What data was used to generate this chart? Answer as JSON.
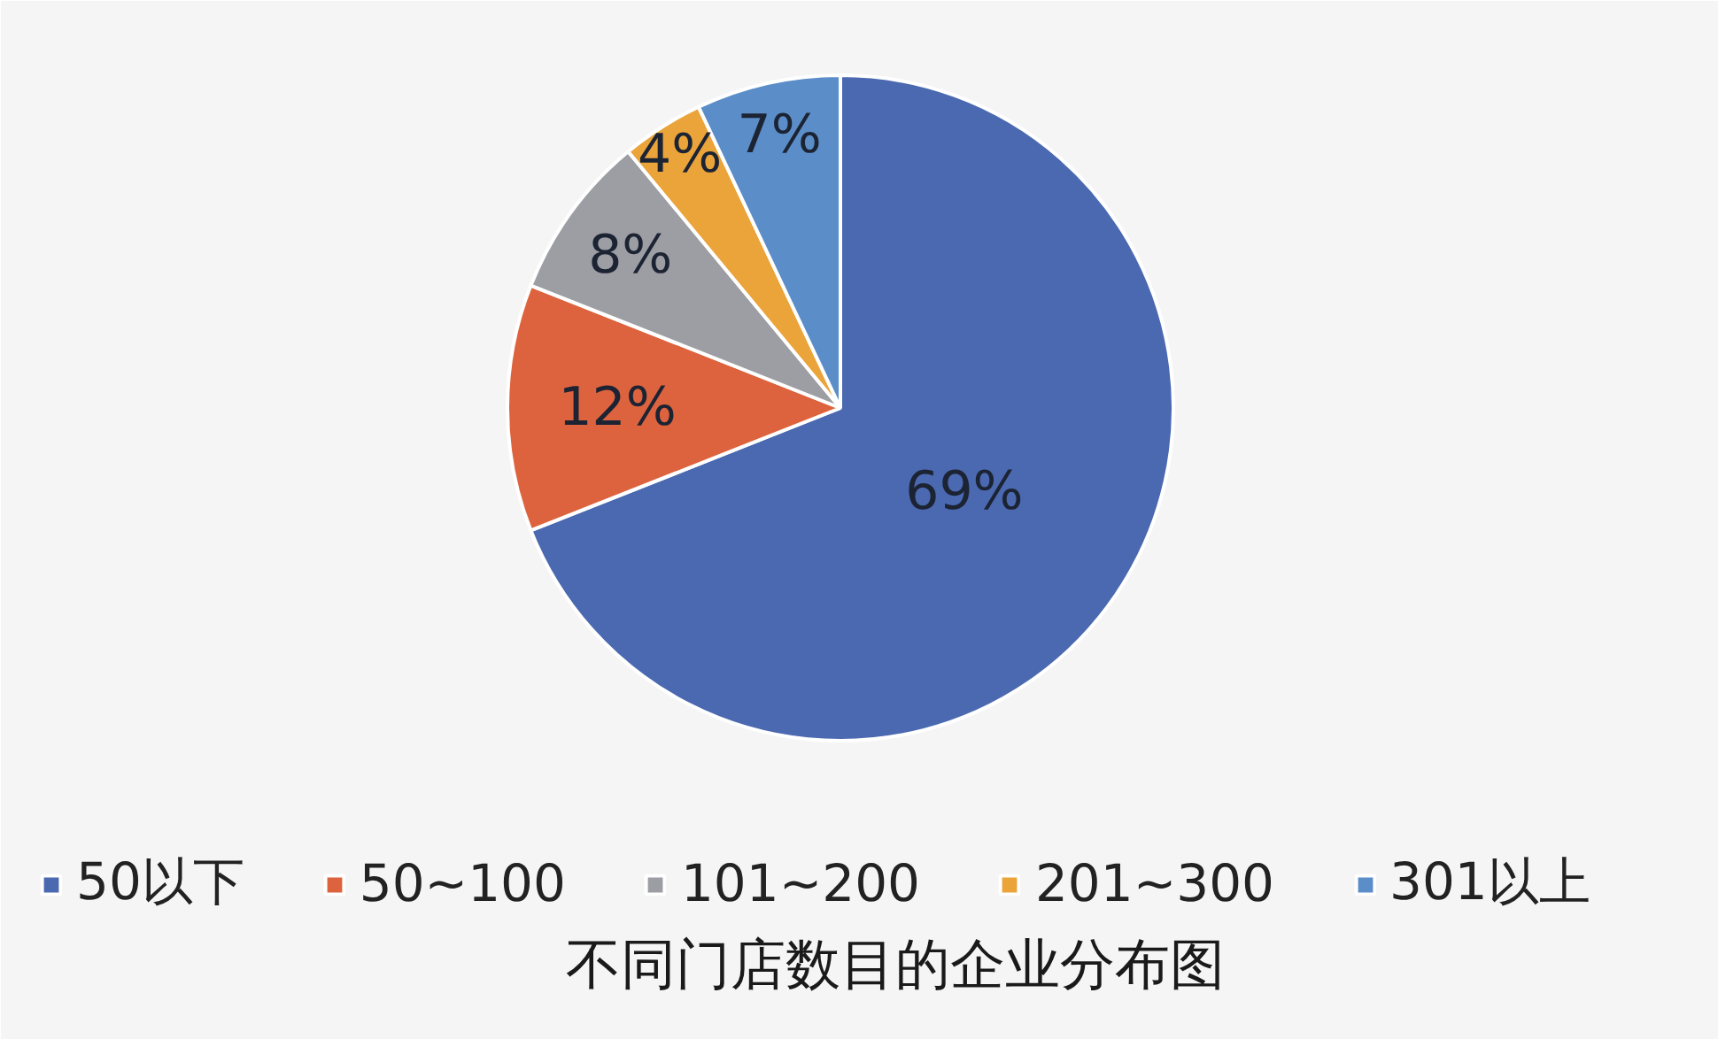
{
  "chart_data": {
    "type": "pie",
    "title": "不同门店数目的企业分布图",
    "categories": [
      "50以下",
      "50~100",
      "101~200",
      "201~300",
      "301以上"
    ],
    "values": [
      69,
      12,
      8,
      4,
      7
    ],
    "colors": [
      "#4a69b0",
      "#dd633e",
      "#9d9ea3",
      "#eaa43a",
      "#5b8dc8"
    ],
    "value_labels": [
      "69%",
      "12%",
      "8%",
      "4%",
      "7%"
    ],
    "legend": "bottom"
  }
}
